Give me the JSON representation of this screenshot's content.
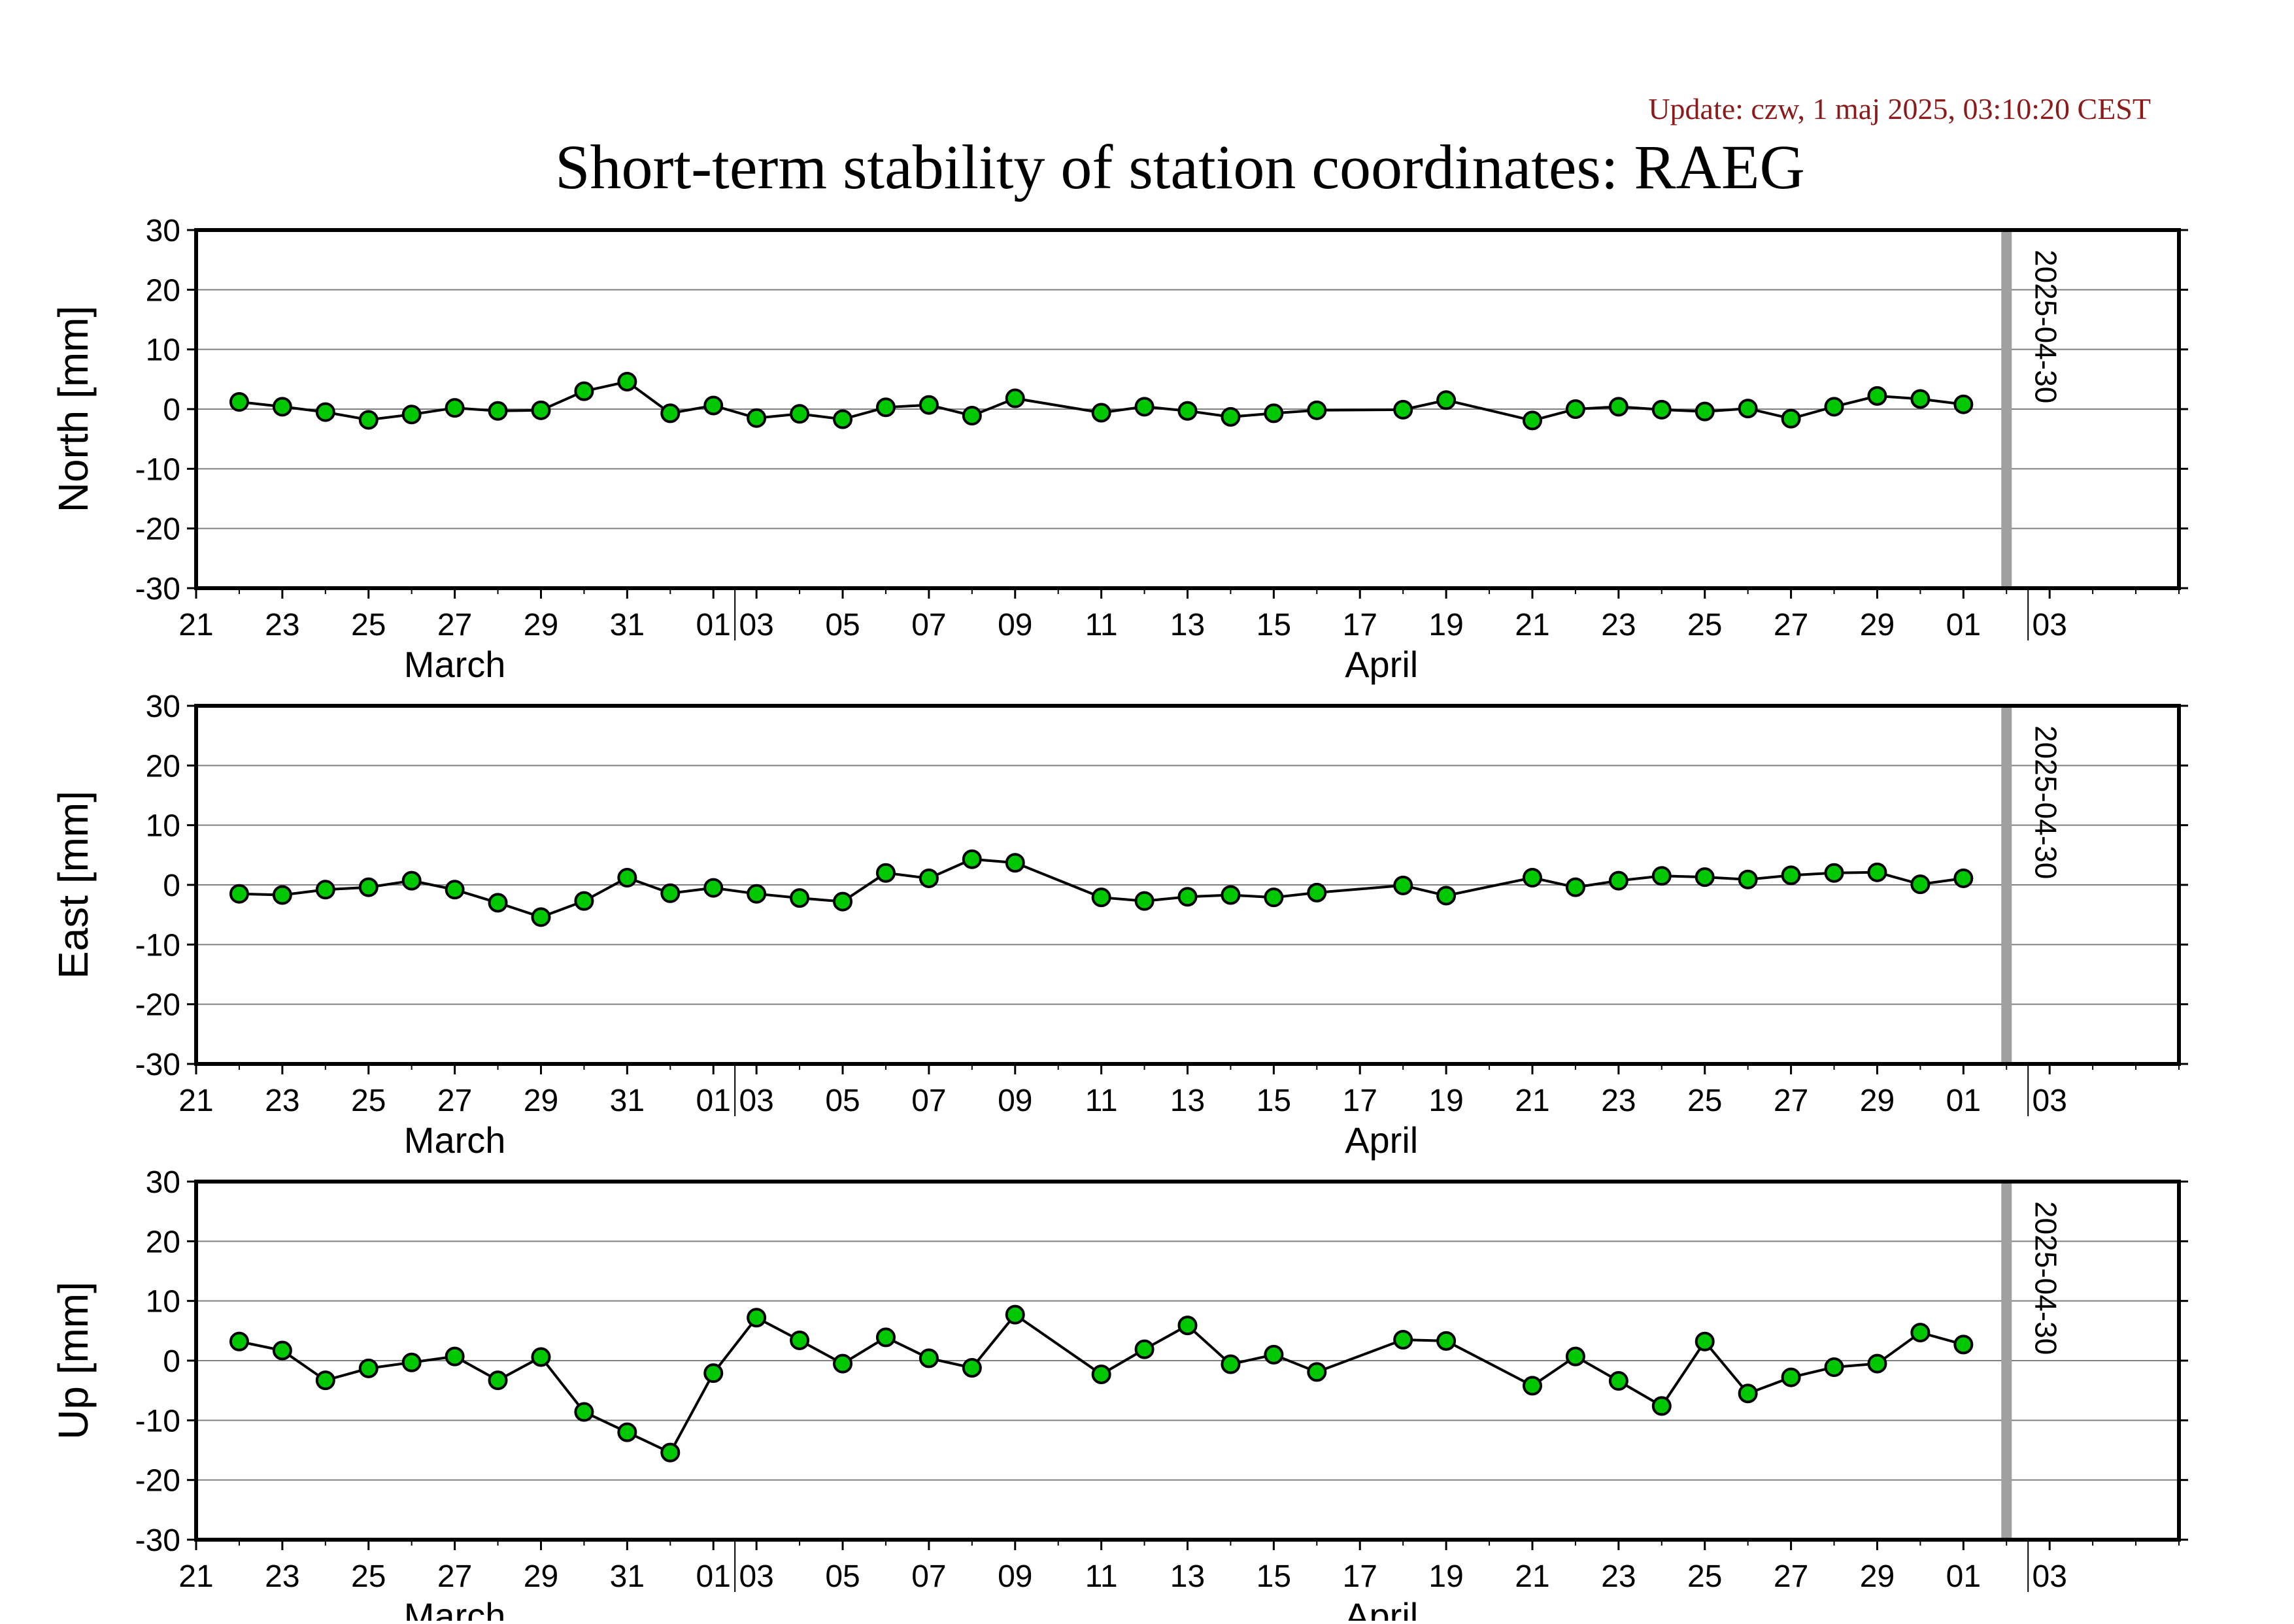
{
  "header": {
    "update_text": "Update: czw, 1 maj 2025, 03:10:20 CEST",
    "title": "Short-term stability of station coordinates: RAEG"
  },
  "colors": {
    "update_text": "#8b1a1a",
    "marker_fill": "#00c800",
    "marker_stroke": "#000000",
    "line": "#000000",
    "grid": "#808080",
    "current_date_bar": "#a0a0a0",
    "axis": "#000000"
  },
  "chart_data": [
    {
      "type": "line",
      "ylabel": "North [mm]",
      "ylim": [
        -30,
        30
      ],
      "yticks": [
        -30,
        -20,
        -10,
        0,
        10,
        20,
        30
      ],
      "xlim": [
        "2025-03-19",
        "2025-05-04"
      ],
      "grid": true,
      "marker": "circle",
      "x_tick_labels": [
        "21",
        "23",
        "25",
        "27",
        "29",
        "31",
        "01",
        "03",
        "05",
        "07",
        "09",
        "11",
        "13",
        "15",
        "17",
        "19",
        "21",
        "23",
        "25",
        "27",
        "29",
        "01",
        "03"
      ],
      "month_labels": [
        "March",
        "April"
      ],
      "current_date_label": "2025-04-30",
      "series": [
        {
          "x": [
            "2025-03-20",
            "2025-03-21",
            "2025-03-22",
            "2025-03-23",
            "2025-03-24",
            "2025-03-25",
            "2025-03-26",
            "2025-03-27",
            "2025-03-28",
            "2025-03-29",
            "2025-03-30",
            "2025-03-31",
            "2025-04-01",
            "2025-04-02",
            "2025-04-03",
            "2025-04-04",
            "2025-04-05",
            "2025-04-06",
            "2025-04-07",
            "2025-04-09",
            "2025-04-10",
            "2025-04-11",
            "2025-04-12",
            "2025-04-13",
            "2025-04-14",
            "2025-04-16",
            "2025-04-17",
            "2025-04-19",
            "2025-04-20",
            "2025-04-21",
            "2025-04-22",
            "2025-04-23",
            "2025-04-24",
            "2025-04-25",
            "2025-04-26",
            "2025-04-27",
            "2025-04-28",
            "2025-04-29"
          ],
          "values": [
            1.2,
            0.4,
            -0.5,
            -1.8,
            -0.9,
            0.2,
            -0.3,
            -0.2,
            3.0,
            4.6,
            -0.7,
            0.6,
            -1.5,
            -0.8,
            -1.7,
            0.3,
            0.7,
            -1.1,
            1.8,
            -0.6,
            0.4,
            -0.3,
            -1.3,
            -0.7,
            -0.2,
            -0.1,
            1.5,
            -1.9,
            0.0,
            0.4,
            -0.1,
            -0.4,
            0.1,
            -1.6,
            0.4,
            2.2,
            1.7,
            0.8
          ]
        }
      ]
    },
    {
      "type": "line",
      "ylabel": "East [mm]",
      "ylim": [
        -30,
        30
      ],
      "yticks": [
        -30,
        -20,
        -10,
        0,
        10,
        20,
        30
      ],
      "xlim": [
        "2025-03-19",
        "2025-05-04"
      ],
      "grid": true,
      "marker": "circle",
      "x_tick_labels": [
        "21",
        "23",
        "25",
        "27",
        "29",
        "31",
        "01",
        "03",
        "05",
        "07",
        "09",
        "11",
        "13",
        "15",
        "17",
        "19",
        "21",
        "23",
        "25",
        "27",
        "29",
        "01",
        "03"
      ],
      "month_labels": [
        "March",
        "April"
      ],
      "current_date_label": "2025-04-30",
      "series": [
        {
          "x": [
            "2025-03-20",
            "2025-03-21",
            "2025-03-22",
            "2025-03-23",
            "2025-03-24",
            "2025-03-25",
            "2025-03-26",
            "2025-03-27",
            "2025-03-28",
            "2025-03-29",
            "2025-03-30",
            "2025-03-31",
            "2025-04-01",
            "2025-04-02",
            "2025-04-03",
            "2025-04-04",
            "2025-04-05",
            "2025-04-06",
            "2025-04-07",
            "2025-04-09",
            "2025-04-10",
            "2025-04-11",
            "2025-04-12",
            "2025-04-13",
            "2025-04-14",
            "2025-04-16",
            "2025-04-17",
            "2025-04-19",
            "2025-04-20",
            "2025-04-21",
            "2025-04-22",
            "2025-04-23",
            "2025-04-24",
            "2025-04-25",
            "2025-04-26",
            "2025-04-27",
            "2025-04-28",
            "2025-04-29"
          ],
          "values": [
            -1.5,
            -1.7,
            -0.8,
            -0.4,
            0.7,
            -0.8,
            -3.0,
            -5.4,
            -2.7,
            1.2,
            -1.4,
            -0.5,
            -1.5,
            -2.2,
            -2.8,
            2.0,
            1.1,
            4.3,
            3.7,
            -2.1,
            -2.7,
            -2.0,
            -1.7,
            -2.1,
            -1.3,
            -0.1,
            -1.8,
            1.2,
            -0.4,
            0.7,
            1.5,
            1.3,
            0.9,
            1.6,
            2.0,
            2.1,
            0.1,
            1.1
          ]
        }
      ]
    },
    {
      "type": "line",
      "ylabel": "Up [mm]",
      "ylim": [
        -30,
        30
      ],
      "yticks": [
        -30,
        -20,
        -10,
        0,
        10,
        20,
        30
      ],
      "xlim": [
        "2025-03-19",
        "2025-05-04"
      ],
      "grid": true,
      "marker": "circle",
      "x_tick_labels": [
        "21",
        "23",
        "25",
        "27",
        "29",
        "31",
        "01",
        "03",
        "05",
        "07",
        "09",
        "11",
        "13",
        "15",
        "17",
        "19",
        "21",
        "23",
        "25",
        "27",
        "29",
        "01",
        "03"
      ],
      "month_labels": [
        "March",
        "April"
      ],
      "current_date_label": "2025-04-30",
      "series": [
        {
          "x": [
            "2025-03-20",
            "2025-03-21",
            "2025-03-22",
            "2025-03-23",
            "2025-03-24",
            "2025-03-25",
            "2025-03-26",
            "2025-03-27",
            "2025-03-28",
            "2025-03-29",
            "2025-03-30",
            "2025-03-31",
            "2025-04-01",
            "2025-04-02",
            "2025-04-03",
            "2025-04-04",
            "2025-04-05",
            "2025-04-06",
            "2025-04-07",
            "2025-04-09",
            "2025-04-10",
            "2025-04-11",
            "2025-04-12",
            "2025-04-13",
            "2025-04-14",
            "2025-04-16",
            "2025-04-17",
            "2025-04-19",
            "2025-04-20",
            "2025-04-21",
            "2025-04-22",
            "2025-04-23",
            "2025-04-24",
            "2025-04-25",
            "2025-04-26",
            "2025-04-27",
            "2025-04-28",
            "2025-04-29"
          ],
          "values": [
            3.2,
            1.7,
            -3.3,
            -1.3,
            -0.3,
            0.7,
            -3.3,
            0.6,
            -8.6,
            -12.0,
            -15.4,
            -2.1,
            7.2,
            3.4,
            -0.5,
            3.9,
            0.4,
            -1.2,
            7.7,
            -2.3,
            1.9,
            5.9,
            -0.6,
            1.0,
            -1.9,
            3.5,
            3.3,
            -4.2,
            0.7,
            -3.4,
            -7.6,
            3.2,
            -5.5,
            -2.8,
            -1.1,
            -0.5,
            4.7,
            2.7
          ]
        }
      ]
    }
  ]
}
